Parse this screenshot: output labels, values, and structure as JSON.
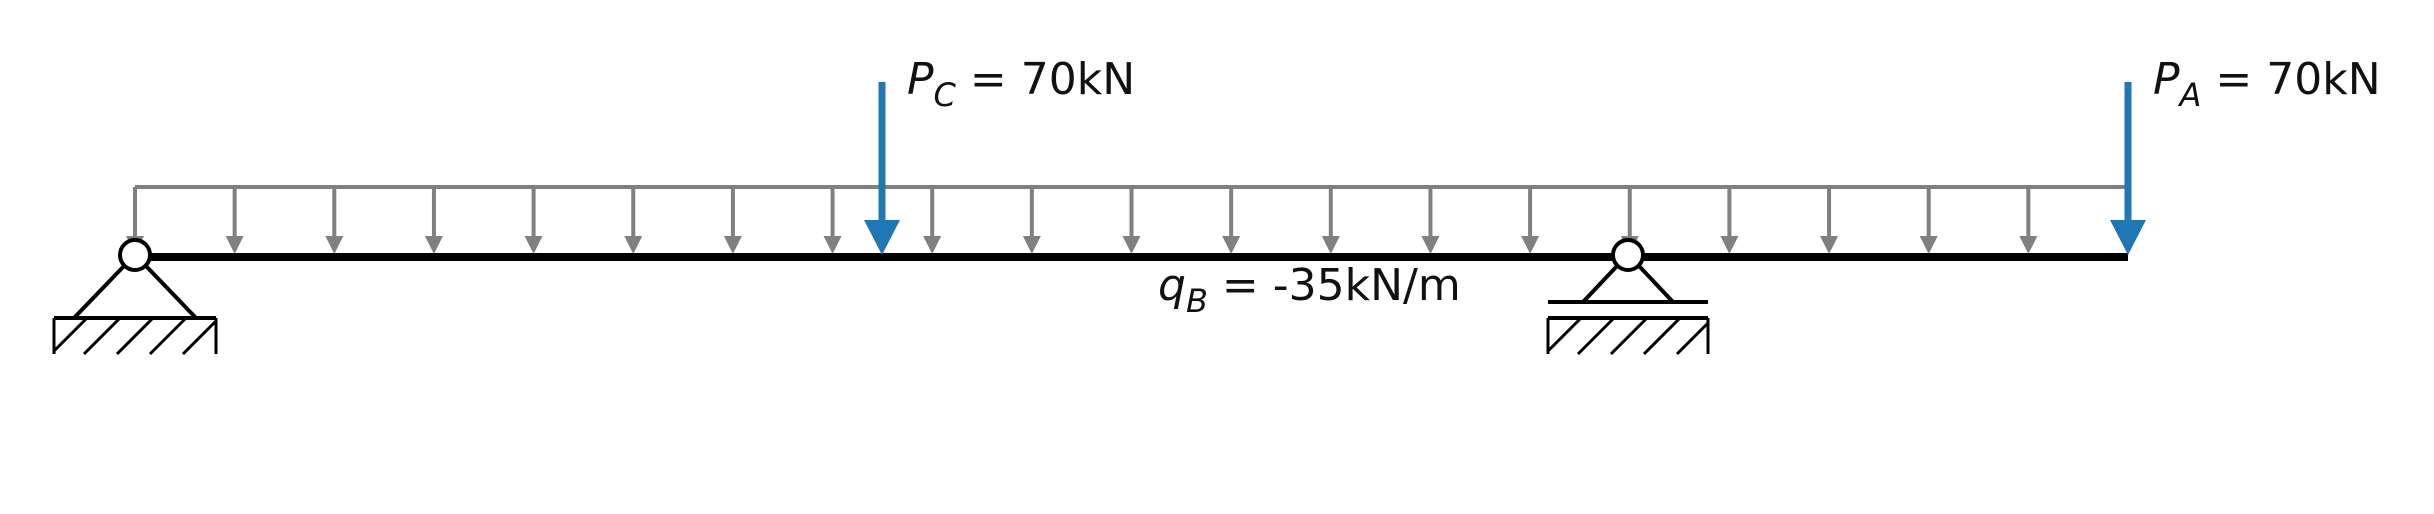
{
  "colors": {
    "beam": "#000000",
    "point_load": "#1f77b4",
    "distributed_load": "#808080",
    "support": "#000000"
  },
  "loads": {
    "point_c": {
      "symbol": "P",
      "subscript": "C",
      "value_text": " = 70kN"
    },
    "point_a": {
      "symbol": "P",
      "subscript": "A",
      "value_text": " = 70kN"
    },
    "distributed_b": {
      "symbol": "q",
      "subscript": "B",
      "value_text": " = -35kN/m"
    }
  },
  "supports": [
    {
      "type": "pin",
      "icon": "pin-support-icon"
    },
    {
      "type": "roller",
      "icon": "roller-support-icon"
    }
  ]
}
